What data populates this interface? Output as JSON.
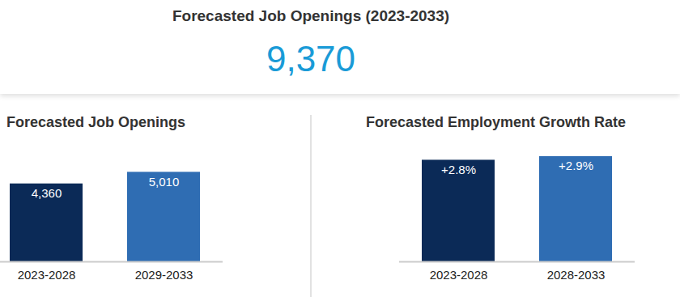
{
  "header": {
    "title": "Forecasted Job Openings (2023-2033)",
    "value": "9,370"
  },
  "chart_data": [
    {
      "type": "bar",
      "title": "Forecasted Job Openings",
      "categories": [
        "2023-2028",
        "2029-2033"
      ],
      "values": [
        4360,
        5010
      ],
      "value_labels": [
        "4,360",
        "5,010"
      ],
      "colors": [
        "#0b2a57",
        "#2f6db3"
      ],
      "ylim": [
        0,
        6700
      ],
      "data_labels": true,
      "tick_labels": "x",
      "grid": false
    },
    {
      "type": "bar",
      "title": "Forecasted Employment Growth Rate",
      "categories": [
        "2023-2028",
        "2028-2033"
      ],
      "values": [
        2.8,
        2.9
      ],
      "value_labels": [
        "+2.8%",
        "+2.9%"
      ],
      "colors": [
        "#0b2a57",
        "#2f6db3"
      ],
      "ylim": [
        0,
        3.3
      ],
      "data_labels": true,
      "tick_labels": "x",
      "grid": false
    }
  ]
}
